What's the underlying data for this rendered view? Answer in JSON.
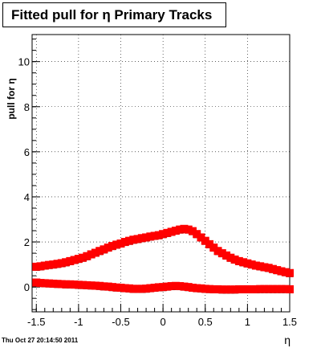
{
  "title": "Fitted pull for η  Primary Tracks",
  "timestamp": "Thu Oct 27 20:14:50 2011",
  "chart_data": {
    "type": "scatter",
    "title": "Fitted pull for η  Primary Tracks",
    "xlabel": "η",
    "ylabel": "pull for η",
    "xlim": [
      -1.55,
      1.5
    ],
    "ylim": [
      -1.1,
      11.2
    ],
    "grid": true,
    "x_ticks": [
      "-1.5",
      "-1",
      "-0.5",
      "0",
      "0.5",
      "1",
      "1.5"
    ],
    "y_ticks": [
      "0",
      "2",
      "4",
      "6",
      "8",
      "10"
    ],
    "marker_color": "#ff0000",
    "series": [
      {
        "x": [
          -1.5,
          -1.45,
          -1.4,
          -1.35,
          -1.3,
          -1.25,
          -1.2,
          -1.15,
          -1.1,
          -1.05,
          -1.0,
          -0.95,
          -0.9,
          -0.85,
          -0.8,
          -0.75,
          -0.7,
          -0.65,
          -0.6,
          -0.55,
          -0.5,
          -0.45,
          -0.4,
          -0.35,
          -0.3,
          -0.25,
          -0.2,
          -0.15,
          -0.1,
          -0.05,
          0.0,
          0.05,
          0.1,
          0.15,
          0.2,
          0.25,
          0.3,
          0.35,
          0.4,
          0.45,
          0.5,
          0.55,
          0.6,
          0.65,
          0.7,
          0.75,
          0.8,
          0.85,
          0.9,
          0.95,
          1.0,
          1.05,
          1.1,
          1.15,
          1.2,
          1.25,
          1.3,
          1.35,
          1.4,
          1.45,
          1.5
        ],
        "values": [
          0.9,
          0.92,
          0.95,
          0.98,
          1.0,
          1.03,
          1.06,
          1.1,
          1.15,
          1.2,
          1.25,
          1.3,
          1.37,
          1.45,
          1.52,
          1.6,
          1.67,
          1.75,
          1.82,
          1.88,
          1.93,
          2.0,
          2.05,
          2.1,
          2.13,
          2.17,
          2.2,
          2.24,
          2.27,
          2.3,
          2.35,
          2.4,
          2.45,
          2.5,
          2.55,
          2.58,
          2.55,
          2.48,
          2.35,
          2.2,
          2.05,
          1.9,
          1.75,
          1.6,
          1.5,
          1.4,
          1.3,
          1.22,
          1.15,
          1.1,
          1.05,
          1.0,
          0.95,
          0.92,
          0.88,
          0.85,
          0.8,
          0.75,
          0.7,
          0.66,
          0.62
        ]
      },
      {
        "x": [
          -1.5,
          -1.45,
          -1.4,
          -1.35,
          -1.3,
          -1.25,
          -1.2,
          -1.15,
          -1.1,
          -1.05,
          -1.0,
          -0.95,
          -0.9,
          -0.85,
          -0.8,
          -0.75,
          -0.7,
          -0.65,
          -0.6,
          -0.55,
          -0.5,
          -0.45,
          -0.4,
          -0.35,
          -0.3,
          -0.25,
          -0.2,
          -0.15,
          -0.1,
          -0.05,
          0.0,
          0.05,
          0.1,
          0.15,
          0.2,
          0.25,
          0.3,
          0.35,
          0.4,
          0.45,
          0.5,
          0.55,
          0.6,
          0.65,
          0.7,
          0.75,
          0.8,
          0.85,
          0.9,
          0.95,
          1.0,
          1.05,
          1.1,
          1.15,
          1.2,
          1.25,
          1.3,
          1.35,
          1.4,
          1.45,
          1.5
        ],
        "values": [
          0.2,
          0.18,
          0.17,
          0.16,
          0.15,
          0.14,
          0.13,
          0.12,
          0.12,
          0.11,
          0.1,
          0.09,
          0.08,
          0.07,
          0.06,
          0.05,
          0.03,
          0.02,
          0.0,
          -0.02,
          -0.03,
          -0.05,
          -0.06,
          -0.08,
          -0.08,
          -0.08,
          -0.07,
          -0.05,
          -0.03,
          -0.01,
          0.0,
          0.02,
          0.04,
          0.05,
          0.04,
          0.02,
          0.0,
          -0.03,
          -0.05,
          -0.06,
          -0.08,
          -0.09,
          -0.1,
          -0.1,
          -0.11,
          -0.11,
          -0.11,
          -0.11,
          -0.1,
          -0.1,
          -0.1,
          -0.1,
          -0.1,
          -0.09,
          -0.09,
          -0.09,
          -0.09,
          -0.09,
          -0.09,
          -0.09,
          -0.1
        ]
      }
    ]
  }
}
